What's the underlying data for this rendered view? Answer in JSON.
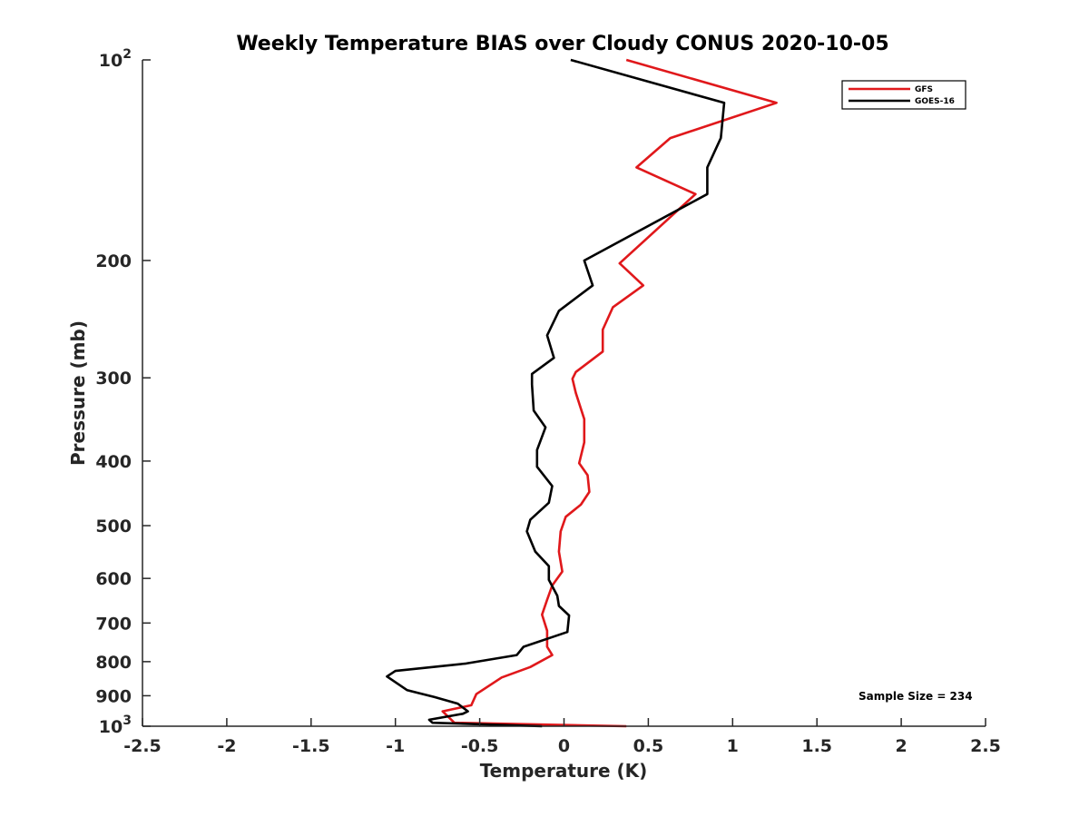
{
  "chart_data": {
    "type": "line",
    "title": "Weekly Temperature BIAS over Cloudy CONUS 2020-10-05",
    "xlabel": "Temperature (K)",
    "ylabel": "Pressure (mb)",
    "xlim": [
      -2.5,
      2.5
    ],
    "ylim": [
      100,
      1000
    ],
    "yscale": "log",
    "y_reversed": true,
    "grid": false,
    "legend_position": "top-right",
    "x_ticks": [
      {
        "value": -2.5,
        "label": "-2.5"
      },
      {
        "value": -2,
        "label": "-2"
      },
      {
        "value": -1.5,
        "label": "-1.5"
      },
      {
        "value": -1,
        "label": "-1"
      },
      {
        "value": -0.5,
        "label": "-0.5"
      },
      {
        "value": 0,
        "label": "0"
      },
      {
        "value": 0.5,
        "label": "0.5"
      },
      {
        "value": 1,
        "label": "1"
      },
      {
        "value": 1.5,
        "label": "1.5"
      },
      {
        "value": 2,
        "label": "2"
      },
      {
        "value": 2.5,
        "label": "2.5"
      }
    ],
    "y_ticks": [
      {
        "value": 100,
        "label": "10",
        "sup": "2"
      },
      {
        "value": 200,
        "label": "200"
      },
      {
        "value": 300,
        "label": "300"
      },
      {
        "value": 400,
        "label": "400"
      },
      {
        "value": 500,
        "label": "500"
      },
      {
        "value": 600,
        "label": "600"
      },
      {
        "value": 700,
        "label": "700"
      },
      {
        "value": 800,
        "label": "800"
      },
      {
        "value": 900,
        "label": "900"
      },
      {
        "value": 1000,
        "label": "10",
        "sup": "3"
      }
    ],
    "series": [
      {
        "name": "GFS",
        "color": "#e0181b",
        "points": [
          [
            0.37,
            100
          ],
          [
            1.26,
            116
          ],
          [
            0.63,
            131
          ],
          [
            0.43,
            145
          ],
          [
            0.78,
            159
          ],
          [
            0.33,
            202
          ],
          [
            0.47,
            218
          ],
          [
            0.29,
            235
          ],
          [
            0.23,
            254
          ],
          [
            0.23,
            274
          ],
          [
            0.07,
            294
          ],
          [
            0.05,
            301
          ],
          [
            0.07,
            316
          ],
          [
            0.12,
            346
          ],
          [
            0.12,
            375
          ],
          [
            0.09,
            403
          ],
          [
            0.14,
            420
          ],
          [
            0.15,
            445
          ],
          [
            0.1,
            465
          ],
          [
            0.01,
            485
          ],
          [
            -0.02,
            510
          ],
          [
            -0.03,
            547
          ],
          [
            -0.01,
            586
          ],
          [
            -0.07,
            615
          ],
          [
            -0.1,
            646
          ],
          [
            -0.13,
            680
          ],
          [
            -0.1,
            719
          ],
          [
            -0.1,
            760
          ],
          [
            -0.07,
            782
          ],
          [
            -0.2,
            815
          ],
          [
            -0.37,
            845
          ],
          [
            -0.52,
            895
          ],
          [
            -0.55,
            930
          ],
          [
            -0.72,
            950
          ],
          [
            -0.65,
            988
          ],
          [
            0.37,
            1000
          ]
        ]
      },
      {
        "name": "GOES-16",
        "color": "#000000",
        "points": [
          [
            0.04,
            100
          ],
          [
            0.95,
            116
          ],
          [
            0.93,
            131
          ],
          [
            0.85,
            145
          ],
          [
            0.85,
            159
          ],
          [
            0.12,
            200
          ],
          [
            0.17,
            218
          ],
          [
            -0.03,
            238
          ],
          [
            -0.1,
            259
          ],
          [
            -0.06,
            280
          ],
          [
            -0.19,
            296
          ],
          [
            -0.19,
            307
          ],
          [
            -0.18,
            336
          ],
          [
            -0.11,
            356
          ],
          [
            -0.16,
            385
          ],
          [
            -0.16,
            408
          ],
          [
            -0.07,
            436
          ],
          [
            -0.09,
            462
          ],
          [
            -0.2,
            490
          ],
          [
            -0.22,
            510
          ],
          [
            -0.17,
            547
          ],
          [
            -0.09,
            575
          ],
          [
            -0.09,
            603
          ],
          [
            -0.04,
            637
          ],
          [
            -0.03,
            660
          ],
          [
            0.03,
            682
          ],
          [
            0.02,
            722
          ],
          [
            -0.24,
            760
          ],
          [
            -0.28,
            782
          ],
          [
            -0.58,
            805
          ],
          [
            -1.0,
            826
          ],
          [
            -1.05,
            842
          ],
          [
            -0.93,
            883
          ],
          [
            -0.77,
            904
          ],
          [
            -0.63,
            925
          ],
          [
            -0.57,
            950
          ],
          [
            -0.6,
            958
          ],
          [
            -0.8,
            978
          ],
          [
            -0.78,
            988
          ],
          [
            -0.13,
            1000
          ]
        ]
      }
    ],
    "annotations": [
      "Sample Size = 234"
    ]
  }
}
